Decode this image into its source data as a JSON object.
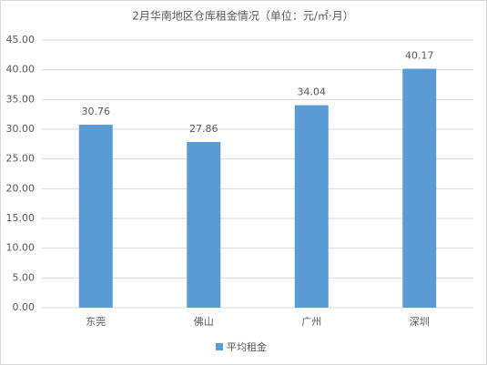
{
  "chart_data": {
    "type": "bar",
    "title": "2月华南地区仓库租金情况（单位：元/㎡·月）",
    "categories": [
      "东莞",
      "佛山",
      "广州",
      "深圳"
    ],
    "series": [
      {
        "name": "平均租金",
        "color": "#5b9bd5",
        "values": [
          30.76,
          27.86,
          34.04,
          40.17
        ]
      }
    ],
    "ylim": [
      0,
      45
    ],
    "yticks": [
      {
        "value": 0,
        "label": "0.00"
      },
      {
        "value": 5,
        "label": "5.00"
      },
      {
        "value": 10,
        "label": "10.00"
      },
      {
        "value": 15,
        "label": "15.00"
      },
      {
        "value": 20,
        "label": "20.00"
      },
      {
        "value": 25,
        "label": "25.00"
      },
      {
        "value": 30,
        "label": "30.00"
      },
      {
        "value": 35,
        "label": "35.00"
      },
      {
        "value": 40,
        "label": "40.00"
      },
      {
        "value": 45,
        "label": "45.00"
      }
    ],
    "grid": true,
    "legend": "bottom"
  }
}
